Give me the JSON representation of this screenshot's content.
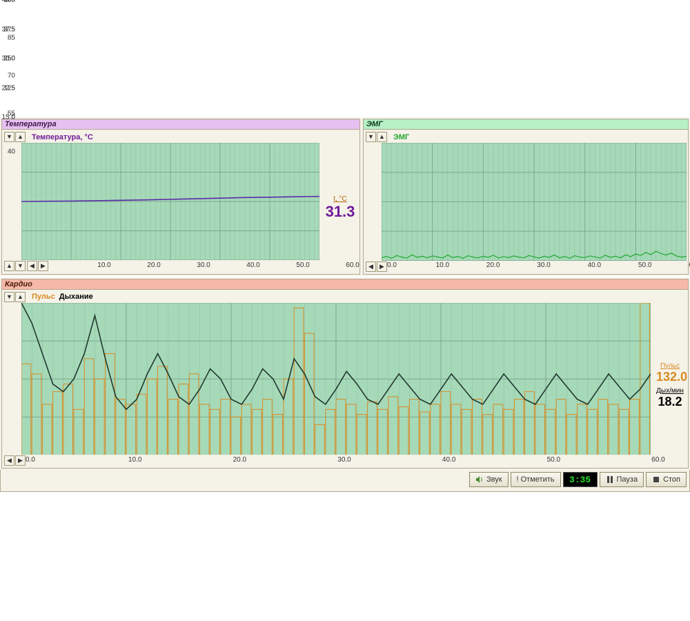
{
  "colors": {
    "chart_bg": "#a6d9b8",
    "grid": "#7da890",
    "grid_minor": "#8fbfa2",
    "panel_bg": "#f5f2e8",
    "temp_hdr": "#e6c0f0",
    "emg_hdr": "#b6f0c4",
    "cardio_hdr": "#f6b8a8",
    "temp_line": "#5a2aa8",
    "emg_line": "#1fa82f",
    "pulse_bar": "#d88a20",
    "breath_line": "#203830"
  },
  "temp_panel": {
    "title": "Температура",
    "legend": "Температура, °C",
    "legend_color": "#6f1a9a",
    "value_label": "t, °C",
    "value": "31.3",
    "value_color": "#6f1a9a",
    "ylim": [
      15.0,
      45.0
    ],
    "yticks": [
      15.0,
      22.5,
      30.0,
      37.5,
      45.0
    ],
    "xlim": [
      0,
      60
    ],
    "xticks": [
      10,
      20,
      30,
      40,
      50,
      60
    ],
    "xtick_labels": [
      "10.0",
      "20.0",
      "30.0",
      "40.0",
      "50.0",
      "60.0"
    ],
    "series": [
      [
        0,
        30.0
      ],
      [
        5,
        30.05
      ],
      [
        10,
        30.1
      ],
      [
        15,
        30.2
      ],
      [
        20,
        30.3
      ],
      [
        25,
        30.4
      ],
      [
        30,
        30.55
      ],
      [
        35,
        30.7
      ],
      [
        40,
        30.85
      ],
      [
        45,
        31.0
      ],
      [
        50,
        31.1
      ],
      [
        55,
        31.2
      ],
      [
        60,
        31.3
      ]
    ],
    "line_width": 1.6
  },
  "emg_panel": {
    "title": "ЭМГ",
    "legend": "ЭМГ",
    "legend_color": "#1fa82f",
    "ylim": [
      0,
      500
    ],
    "yticks": [
      0,
      125,
      250,
      375,
      500
    ],
    "xlim": [
      0,
      60
    ],
    "xticks": [
      0,
      10,
      20,
      30,
      40,
      50,
      60
    ],
    "xtick_labels": [
      "0.0",
      "10.0",
      "20.0",
      "30.0",
      "40.0",
      "50.0",
      "60.0"
    ],
    "series": [
      [
        0,
        12
      ],
      [
        1,
        18
      ],
      [
        2,
        10
      ],
      [
        3,
        22
      ],
      [
        4,
        15
      ],
      [
        5,
        11
      ],
      [
        6,
        25
      ],
      [
        7,
        14
      ],
      [
        8,
        19
      ],
      [
        9,
        12
      ],
      [
        10,
        20
      ],
      [
        11,
        16
      ],
      [
        12,
        11
      ],
      [
        13,
        24
      ],
      [
        14,
        13
      ],
      [
        15,
        18
      ],
      [
        16,
        10
      ],
      [
        17,
        21
      ],
      [
        18,
        15
      ],
      [
        19,
        12
      ],
      [
        20,
        19
      ],
      [
        21,
        14
      ],
      [
        22,
        23
      ],
      [
        23,
        11
      ],
      [
        24,
        17
      ],
      [
        25,
        13
      ],
      [
        26,
        20
      ],
      [
        27,
        15
      ],
      [
        28,
        12
      ],
      [
        29,
        22
      ],
      [
        30,
        16
      ],
      [
        31,
        11
      ],
      [
        32,
        19
      ],
      [
        33,
        14
      ],
      [
        34,
        24
      ],
      [
        35,
        12
      ],
      [
        36,
        18
      ],
      [
        37,
        10
      ],
      [
        38,
        21
      ],
      [
        39,
        15
      ],
      [
        40,
        13
      ],
      [
        41,
        20
      ],
      [
        42,
        16
      ],
      [
        43,
        11
      ],
      [
        44,
        23
      ],
      [
        45,
        14
      ],
      [
        46,
        19
      ],
      [
        47,
        12
      ],
      [
        48,
        25
      ],
      [
        49,
        17
      ],
      [
        50,
        28
      ],
      [
        51,
        22
      ],
      [
        52,
        35
      ],
      [
        53,
        26
      ],
      [
        54,
        40
      ],
      [
        55,
        30
      ],
      [
        56,
        24
      ],
      [
        57,
        32
      ],
      [
        58,
        20
      ],
      [
        59,
        15
      ],
      [
        60,
        18
      ]
    ],
    "line_width": 1.2
  },
  "cardio_panel": {
    "title": "Кардио",
    "legend_pulse": "Пульс",
    "legend_pulse_color": "#d88a20",
    "legend_breath": "Дыхание",
    "legend_breath_color": "#000000",
    "ylim": [
      40,
      100
    ],
    "yticks": [
      40,
      55,
      70,
      85,
      100
    ],
    "xlim": [
      0,
      60
    ],
    "xticks": [
      0,
      10,
      20,
      30,
      40,
      50,
      60
    ],
    "xtick_labels": [
      "0.0",
      "10.0",
      "20.0",
      "30.0",
      "40.0",
      "50.0",
      "60.0"
    ],
    "pulse_label": "Пульс",
    "pulse_value": "132.0",
    "pulse_color": "#d88a20",
    "breath_label": "Дых/мин",
    "breath_value": "18.2",
    "breath_color": "#000000",
    "pulse_bars": [
      76,
      72,
      60,
      65,
      68,
      58,
      78,
      70,
      80,
      62,
      60,
      64,
      70,
      75,
      62,
      68,
      72,
      60,
      58,
      62,
      55,
      60,
      58,
      62,
      56,
      70,
      98,
      88,
      52,
      58,
      62,
      60,
      56,
      61,
      58,
      63,
      59,
      62,
      57,
      60,
      65,
      60,
      58,
      62,
      56,
      60,
      58,
      62,
      65,
      60,
      58,
      62,
      56,
      60,
      58,
      62,
      60,
      58,
      62,
      100
    ],
    "bar_width": 0.9,
    "breath_series": [
      [
        0,
        100
      ],
      [
        1,
        92
      ],
      [
        2,
        80
      ],
      [
        3,
        68
      ],
      [
        4,
        65
      ],
      [
        5,
        70
      ],
      [
        6,
        80
      ],
      [
        7,
        95
      ],
      [
        8,
        78
      ],
      [
        9,
        63
      ],
      [
        10,
        58
      ],
      [
        11,
        62
      ],
      [
        12,
        72
      ],
      [
        13,
        80
      ],
      [
        14,
        72
      ],
      [
        15,
        63
      ],
      [
        16,
        60
      ],
      [
        17,
        66
      ],
      [
        18,
        74
      ],
      [
        19,
        70
      ],
      [
        20,
        62
      ],
      [
        21,
        60
      ],
      [
        22,
        66
      ],
      [
        23,
        74
      ],
      [
        24,
        70
      ],
      [
        25,
        62
      ],
      [
        26,
        78
      ],
      [
        27,
        72
      ],
      [
        28,
        63
      ],
      [
        29,
        60
      ],
      [
        30,
        66
      ],
      [
        31,
        73
      ],
      [
        32,
        68
      ],
      [
        33,
        62
      ],
      [
        34,
        60
      ],
      [
        35,
        66
      ],
      [
        36,
        72
      ],
      [
        37,
        67
      ],
      [
        38,
        62
      ],
      [
        39,
        60
      ],
      [
        40,
        66
      ],
      [
        41,
        72
      ],
      [
        42,
        67
      ],
      [
        43,
        62
      ],
      [
        44,
        60
      ],
      [
        45,
        66
      ],
      [
        46,
        72
      ],
      [
        47,
        67
      ],
      [
        48,
        62
      ],
      [
        49,
        60
      ],
      [
        50,
        66
      ],
      [
        51,
        72
      ],
      [
        52,
        67
      ],
      [
        53,
        62
      ],
      [
        54,
        60
      ],
      [
        55,
        66
      ],
      [
        56,
        72
      ],
      [
        57,
        67
      ],
      [
        58,
        62
      ],
      [
        59,
        66
      ],
      [
        60,
        72
      ]
    ],
    "line_width": 1.6
  },
  "toolbar": {
    "sound": "Звук",
    "mark": "! Отметить",
    "timer": "3:35",
    "pause": "Пауза",
    "stop": "Стоп"
  }
}
